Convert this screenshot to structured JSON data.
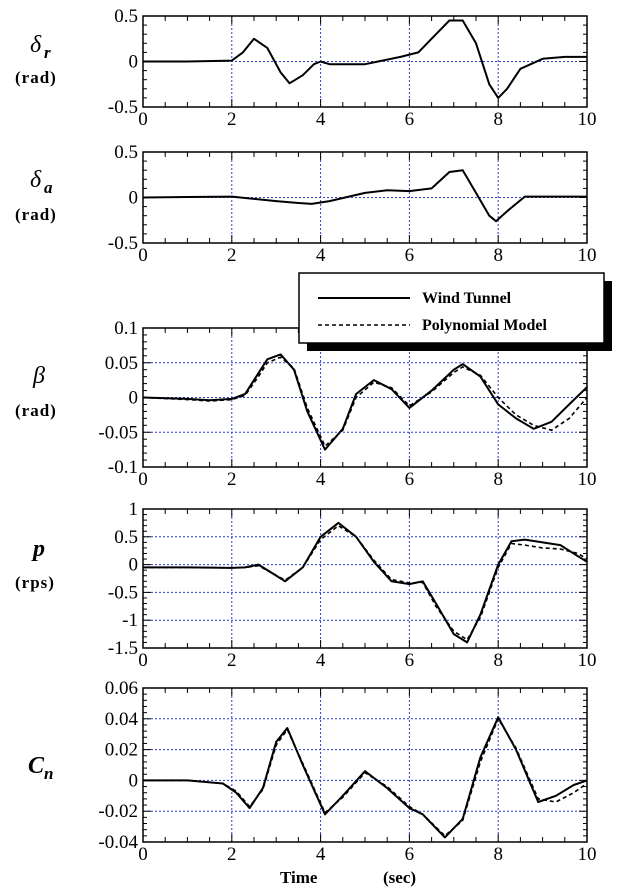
{
  "chart_data": [
    {
      "type": "line",
      "ylabel_symbol": "δ",
      "ylabel_sub": "r",
      "ylabel_unit": "(rad)",
      "xlim": [
        0,
        10
      ],
      "ylim": [
        -0.5,
        0.5
      ],
      "xticks": [
        0,
        2,
        4,
        6,
        8,
        10
      ],
      "yticks": [
        0.5,
        0,
        -0.5
      ],
      "ytick_labels": [
        "0.5",
        "0",
        "-0.5"
      ],
      "series": [
        {
          "name": "Wind Tunnel",
          "style": "solid",
          "x": [
            0,
            1,
            2,
            2.25,
            2.5,
            2.8,
            3.1,
            3.3,
            3.6,
            3.85,
            4.0,
            4.2,
            5,
            5.8,
            6.2,
            6.6,
            6.9,
            7.2,
            7.5,
            7.8,
            8.0,
            8.2,
            8.5,
            9.0,
            9.5,
            10
          ],
          "y": [
            0,
            0,
            0.01,
            0.1,
            0.25,
            0.15,
            -0.12,
            -0.24,
            -0.15,
            -0.03,
            0,
            -0.03,
            -0.03,
            0.05,
            0.1,
            0.3,
            0.45,
            0.45,
            0.2,
            -0.25,
            -0.4,
            -0.3,
            -0.08,
            0.03,
            0.05,
            0.05
          ]
        }
      ]
    },
    {
      "type": "line",
      "ylabel_symbol": "δ",
      "ylabel_sub": "a",
      "ylabel_unit": "(rad)",
      "xlim": [
        0,
        10
      ],
      "ylim": [
        -0.5,
        0.5
      ],
      "xticks": [
        0,
        2,
        4,
        6,
        8,
        10
      ],
      "yticks": [
        0.5,
        0,
        -0.5
      ],
      "ytick_labels": [
        "0.5",
        "0",
        "-0.5"
      ],
      "series": [
        {
          "name": "Wind Tunnel",
          "style": "solid",
          "x": [
            0,
            1,
            2,
            3,
            3.5,
            3.8,
            4.2,
            5,
            5.5,
            6,
            6.5,
            6.9,
            7.2,
            7.5,
            7.8,
            7.95,
            8.2,
            8.6,
            9,
            10
          ],
          "y": [
            0,
            0.005,
            0.01,
            -0.04,
            -0.06,
            -0.07,
            -0.04,
            0.05,
            0.08,
            0.07,
            0.1,
            0.28,
            0.3,
            0.05,
            -0.2,
            -0.26,
            -0.15,
            0.01,
            0.01,
            0.01
          ]
        }
      ]
    },
    {
      "type": "line",
      "ylabel_symbol": "β",
      "ylabel_sub": "",
      "ylabel_unit": "(rad)",
      "xlim": [
        0,
        10
      ],
      "ylim": [
        -0.1,
        0.1
      ],
      "xticks": [
        0,
        2,
        4,
        6,
        8,
        10
      ],
      "yticks": [
        0.1,
        0.05,
        0,
        -0.05,
        -0.1
      ],
      "ytick_labels": [
        "0.1",
        "0.05",
        "0",
        "-0.05",
        "-0.1"
      ],
      "legend": {
        "placement": "top-right",
        "entries": [
          "Wind Tunnel",
          "Polynomial Model"
        ]
      },
      "series": [
        {
          "name": "Wind Tunnel",
          "style": "solid",
          "x": [
            0,
            1,
            1.5,
            2,
            2.3,
            2.6,
            2.8,
            3.1,
            3.4,
            3.7,
            4.1,
            4.5,
            4.8,
            5.2,
            5.6,
            6,
            6.5,
            7,
            7.2,
            7.6,
            8,
            8.4,
            8.8,
            9.2,
            9.6,
            10
          ],
          "y": [
            0,
            -0.002,
            -0.004,
            -0.002,
            0.005,
            0.035,
            0.055,
            0.062,
            0.04,
            -0.02,
            -0.075,
            -0.045,
            0.005,
            0.025,
            0.012,
            -0.015,
            0.01,
            0.04,
            0.048,
            0.03,
            -0.01,
            -0.03,
            -0.045,
            -0.035,
            -0.01,
            0.015
          ]
        },
        {
          "name": "Polynomial Model",
          "style": "dashed",
          "x": [
            0,
            1,
            1.5,
            2,
            2.3,
            2.6,
            2.8,
            3.1,
            3.4,
            3.7,
            4.1,
            4.5,
            4.8,
            5.2,
            5.6,
            6,
            6.5,
            7,
            7.2,
            7.6,
            8,
            8.4,
            8.8,
            9.2,
            9.6,
            10
          ],
          "y": [
            0,
            -0.003,
            -0.005,
            -0.003,
            0.003,
            0.03,
            0.05,
            0.058,
            0.042,
            -0.015,
            -0.07,
            -0.047,
            0.0,
            0.022,
            0.014,
            -0.012,
            0.008,
            0.036,
            0.044,
            0.032,
            0.0,
            -0.025,
            -0.04,
            -0.047,
            -0.03,
            0.0
          ]
        }
      ]
    },
    {
      "type": "line",
      "ylabel_symbol": "p",
      "ylabel_sub": "",
      "ylabel_unit": "(rps)",
      "xlim": [
        0,
        10
      ],
      "ylim": [
        -1.5,
        1
      ],
      "xticks": [
        0,
        2,
        4,
        6,
        8,
        10
      ],
      "yticks": [
        1,
        0.5,
        0,
        -0.5,
        -1,
        -1.5
      ],
      "ytick_labels": [
        "1",
        "0.5",
        "0",
        "-0.5",
        "-1",
        "-1.5"
      ],
      "series": [
        {
          "name": "Wind Tunnel",
          "style": "solid",
          "x": [
            0,
            1,
            2,
            2.3,
            2.6,
            2.9,
            3.2,
            3.6,
            4.0,
            4.4,
            4.8,
            5.2,
            5.6,
            6.0,
            6.3,
            6.6,
            7.0,
            7.3,
            7.6,
            8.0,
            8.3,
            8.6,
            9.0,
            9.4,
            9.8,
            10
          ],
          "y": [
            -0.05,
            -0.05,
            -0.06,
            -0.05,
            0.0,
            -0.15,
            -0.3,
            -0.05,
            0.5,
            0.75,
            0.5,
            0.05,
            -0.3,
            -0.35,
            -0.3,
            -0.7,
            -1.25,
            -1.4,
            -0.9,
            0.0,
            0.42,
            0.45,
            0.4,
            0.35,
            0.15,
            0.05
          ]
        },
        {
          "name": "Polynomial Model",
          "style": "dashed",
          "x": [
            0,
            1,
            2,
            2.3,
            2.6,
            2.9,
            3.2,
            3.6,
            4.0,
            4.4,
            4.8,
            5.2,
            5.6,
            6.0,
            6.3,
            6.6,
            7.0,
            7.3,
            7.6,
            8.0,
            8.3,
            8.6,
            9.0,
            9.4,
            9.8,
            10
          ],
          "y": [
            -0.05,
            -0.05,
            -0.06,
            -0.05,
            -0.02,
            -0.15,
            -0.28,
            -0.05,
            0.45,
            0.7,
            0.5,
            0.08,
            -0.27,
            -0.33,
            -0.32,
            -0.75,
            -1.2,
            -1.35,
            -0.95,
            -0.05,
            0.38,
            0.35,
            0.3,
            0.28,
            0.2,
            0.1
          ]
        }
      ]
    },
    {
      "type": "line",
      "ylabel_symbol": "C",
      "ylabel_sub": "n",
      "ylabel_unit": "",
      "xlim": [
        0,
        10
      ],
      "ylim": [
        -0.04,
        0.06
      ],
      "xticks": [
        0,
        2,
        4,
        6,
        8,
        10
      ],
      "xtick_labels": [
        "0",
        "2",
        "4",
        "6",
        "8",
        "10"
      ],
      "yticks": [
        0.06,
        0.04,
        0.02,
        0,
        -0.02,
        -0.04
      ],
      "ytick_labels": [
        "0.06",
        "0.04",
        "0.02",
        "0",
        "-0.02",
        "-0.04"
      ],
      "xlabel_left": "Time",
      "xlabel_right": "(sec)",
      "series": [
        {
          "name": "Wind Tunnel",
          "style": "solid",
          "x": [
            0,
            1,
            1.8,
            2.1,
            2.4,
            2.7,
            3.0,
            3.25,
            3.6,
            4.1,
            4.5,
            5.0,
            5.5,
            6.0,
            6.3,
            6.8,
            7.2,
            7.6,
            8.0,
            8.4,
            8.9,
            9.3,
            9.7,
            10
          ],
          "y": [
            0,
            0,
            -0.002,
            -0.008,
            -0.018,
            -0.005,
            0.025,
            0.034,
            0.01,
            -0.022,
            -0.01,
            0.006,
            -0.005,
            -0.018,
            -0.022,
            -0.037,
            -0.025,
            0.015,
            0.041,
            0.02,
            -0.014,
            -0.01,
            -0.003,
            0.0
          ]
        },
        {
          "name": "Polynomial Model",
          "style": "dashed",
          "x": [
            0,
            1,
            1.8,
            2.1,
            2.4,
            2.7,
            3.0,
            3.25,
            3.6,
            4.1,
            4.5,
            5.0,
            5.5,
            6.0,
            6.3,
            6.8,
            7.2,
            7.6,
            8.0,
            8.4,
            8.9,
            9.3,
            9.7,
            10
          ],
          "y": [
            0,
            0,
            -0.002,
            -0.007,
            -0.017,
            -0.006,
            0.023,
            0.033,
            0.011,
            -0.021,
            -0.011,
            0.005,
            -0.004,
            -0.017,
            -0.022,
            -0.036,
            -0.026,
            0.012,
            0.04,
            0.021,
            -0.012,
            -0.014,
            -0.008,
            -0.002
          ]
        }
      ]
    }
  ]
}
